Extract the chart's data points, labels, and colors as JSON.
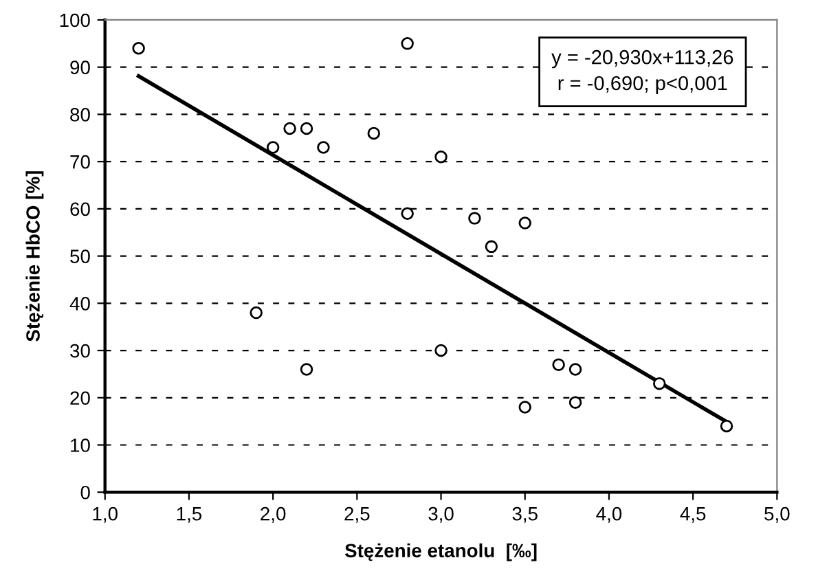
{
  "chart_data": {
    "type": "scatter",
    "xlabel": "Stężenie etanolu  [‰]",
    "ylabel": "Stężenie HbCO [%]",
    "annotations": [
      "y = -20,930x+113,26\nr = -0,690; p<0,001"
    ],
    "series": [
      {
        "color": "#000000",
        "marker": "circle",
        "x": [
          1.2,
          1.9,
          2.0,
          2.1,
          2.2,
          2.2,
          2.3,
          2.6,
          2.8,
          2.8,
          3.0,
          3.0,
          3.2,
          3.3,
          3.5,
          3.5,
          3.7,
          3.8,
          3.8,
          4.3,
          4.7
        ],
        "values": [
          94,
          38,
          73,
          77,
          77,
          26,
          73,
          76,
          95,
          59,
          71,
          30,
          58,
          52,
          57,
          18,
          27,
          26,
          19,
          23,
          14
        ]
      },
      {
        "type": "line",
        "color": "#000000",
        "x": [
          1.2,
          4.7
        ],
        "values": [
          88.1,
          14.9
        ]
      }
    ],
    "xlim": [
      1.0,
      5.0
    ],
    "xticks": [
      {
        "value": 1.0,
        "label": "1,0"
      },
      {
        "value": 1.5,
        "label": "1,5"
      },
      {
        "value": 2.0,
        "label": "2,0"
      },
      {
        "value": 2.5,
        "label": "2,5"
      },
      {
        "value": 3.0,
        "label": "3,0"
      },
      {
        "value": 3.5,
        "label": "3,5"
      },
      {
        "value": 4.0,
        "label": "4,0"
      },
      {
        "value": 4.5,
        "label": "4,5"
      },
      {
        "value": 5.0,
        "label": "5,0"
      }
    ],
    "ylim": [
      0,
      100
    ],
    "yticks": [
      0,
      10,
      20,
      30,
      40,
      50,
      60,
      70,
      80,
      90,
      100
    ],
    "grid": "y"
  }
}
